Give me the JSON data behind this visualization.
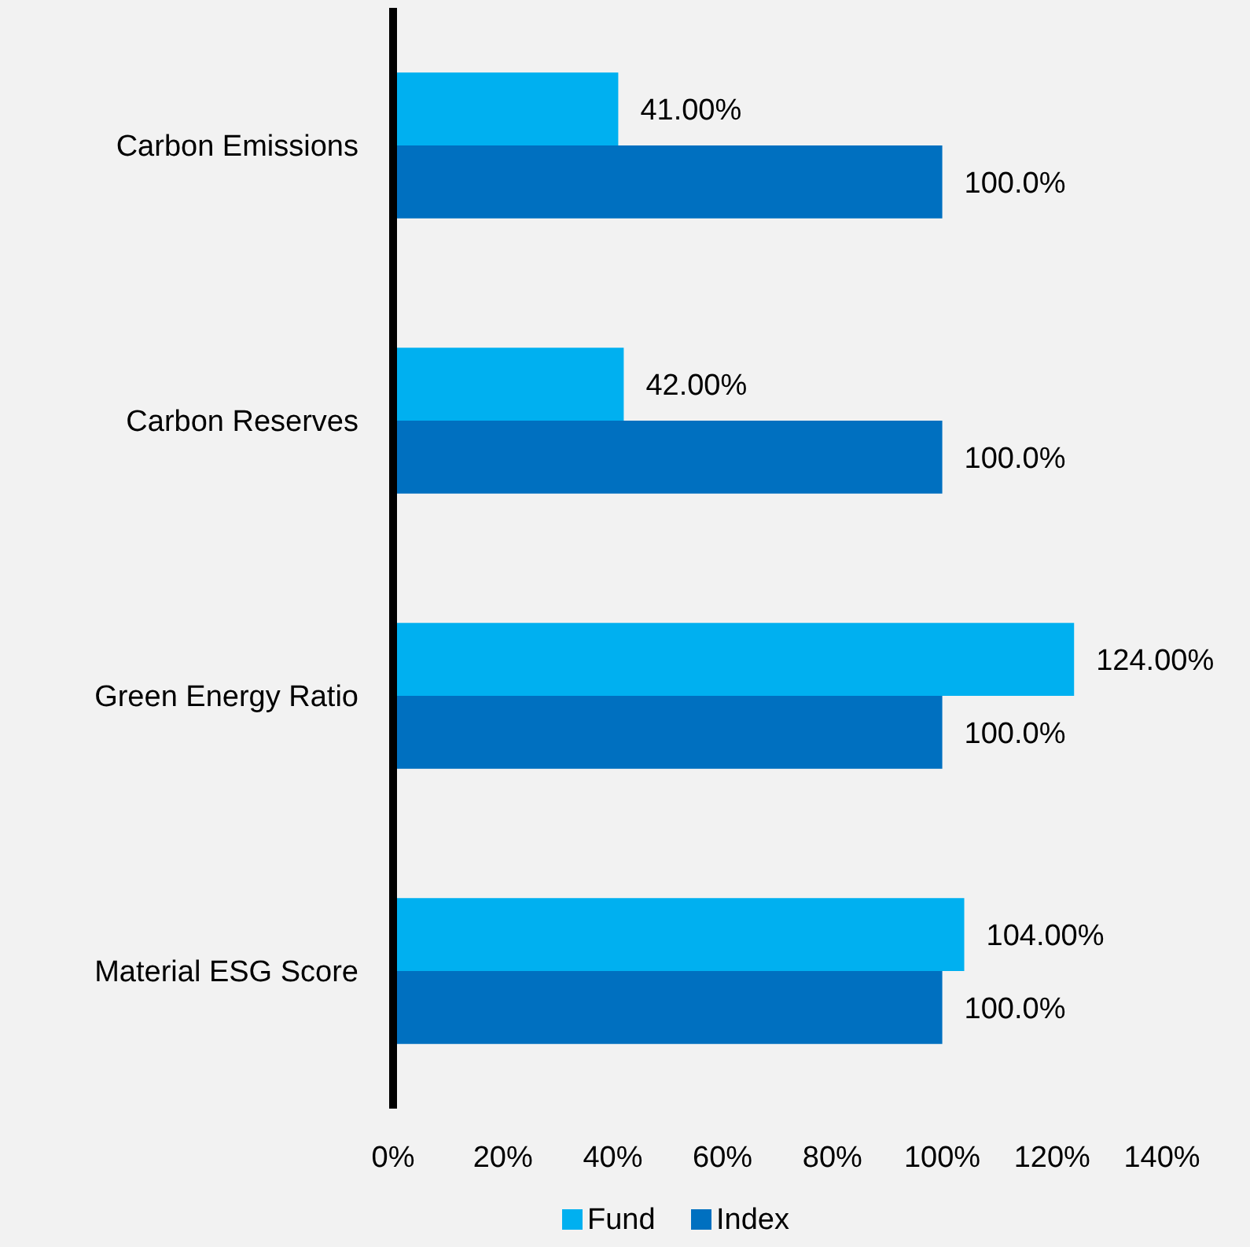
{
  "chart_data": {
    "type": "bar",
    "orientation": "horizontal",
    "categories": [
      "Carbon Emissions",
      "Carbon Reserves",
      "Green Energy Ratio",
      "Material ESG Score"
    ],
    "series": [
      {
        "name": "Fund",
        "color": "#00b0f0",
        "values": [
          41,
          42,
          124,
          104
        ],
        "value_labels": [
          "41.00%",
          "42.00%",
          "124.00%",
          "104.00%"
        ]
      },
      {
        "name": "Index",
        "color": "#0070c0",
        "values": [
          100,
          100,
          100,
          100
        ],
        "value_labels": [
          "100.0%",
          "100.0%",
          "100.0%",
          "100.0%"
        ]
      }
    ],
    "xlim": [
      0,
      140
    ],
    "xticks": [
      {
        "value": 0,
        "label": "0%"
      },
      {
        "value": 20,
        "label": "20%"
      },
      {
        "value": 40,
        "label": "40%"
      },
      {
        "value": 60,
        "label": "60%"
      },
      {
        "value": 80,
        "label": "80%"
      },
      {
        "value": 100,
        "label": "100%"
      },
      {
        "value": 120,
        "label": "120%"
      },
      {
        "value": 140,
        "label": "140%"
      }
    ],
    "grid": false,
    "legend": "bottom"
  }
}
